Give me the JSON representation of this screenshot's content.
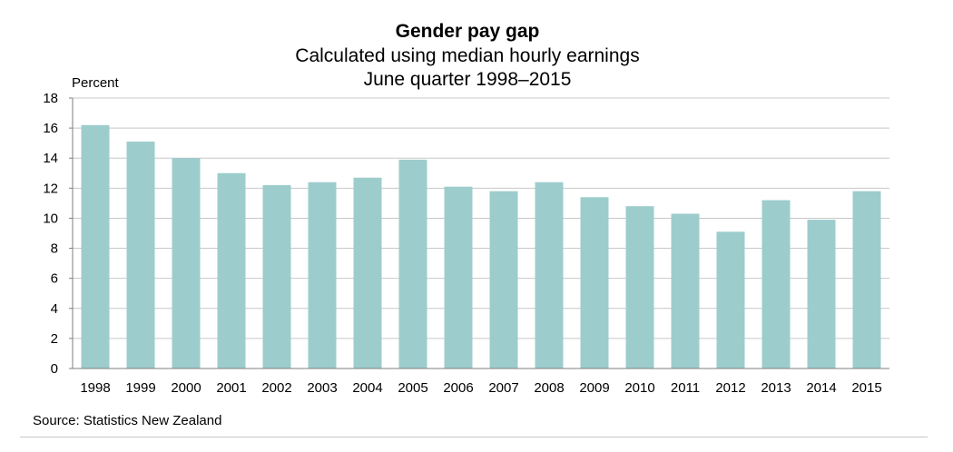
{
  "chart_data": {
    "type": "bar",
    "title": "Gender pay gap",
    "subtitle_lines": [
      "Calculated using median hourly earnings",
      "June quarter 1998–2015"
    ],
    "ylabel": "Percent",
    "xlabel": "",
    "ylim": [
      0,
      18
    ],
    "yticks": [
      0,
      2,
      4,
      6,
      8,
      10,
      12,
      14,
      16,
      18
    ],
    "grid": true,
    "categories": [
      "1998",
      "1999",
      "2000",
      "2001",
      "2002",
      "2003",
      "2004",
      "2005",
      "2006",
      "2007",
      "2008",
      "2009",
      "2010",
      "2011",
      "2012",
      "2013",
      "2014",
      "2015"
    ],
    "values": [
      16.2,
      15.1,
      14.0,
      13.0,
      12.2,
      12.4,
      12.7,
      13.9,
      12.1,
      11.8,
      12.4,
      11.4,
      10.8,
      10.3,
      9.1,
      11.2,
      9.9,
      11.8
    ],
    "bar_color": "#9dcccd",
    "grid_color": "#c8c8c8",
    "axis_color": "#7f7f7f"
  },
  "source": "Source: Statistics New Zealand"
}
